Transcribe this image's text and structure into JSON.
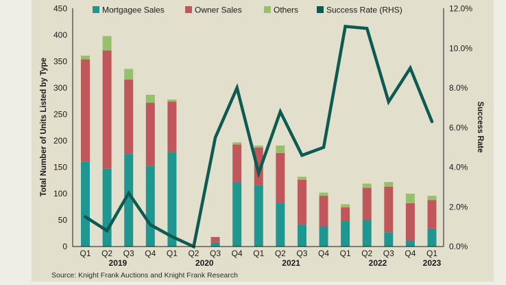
{
  "chart_data": {
    "type": "bar",
    "subtype": "stacked-bar-with-line-secondary-axis",
    "title": "",
    "categories": [
      "Q1",
      "Q2",
      "Q3",
      "Q4",
      "Q1",
      "Q2",
      "Q3",
      "Q4",
      "Q1",
      "Q2",
      "Q3",
      "Q4",
      "Q1",
      "Q2",
      "Q3",
      "Q4",
      "Q1"
    ],
    "year_groups": [
      {
        "label": "2019",
        "start": 0,
        "end": 3
      },
      {
        "label": "2020",
        "start": 4,
        "end": 7
      },
      {
        "label": "2021",
        "start": 8,
        "end": 11
      },
      {
        "label": "2022",
        "start": 12,
        "end": 15
      },
      {
        "label": "2023",
        "start": 16,
        "end": 16
      }
    ],
    "series": [
      {
        "name": "Mortgagee Sales",
        "type": "bar",
        "axis": "left",
        "color": "#1f968f",
        "values": [
          160,
          147,
          175,
          153,
          178,
          0,
          8,
          122,
          116,
          83,
          42,
          39,
          48,
          50,
          27,
          11,
          34
        ]
      },
      {
        "name": "Owner Sales",
        "type": "bar",
        "axis": "left",
        "color": "#c0575a",
        "values": [
          194,
          224,
          141,
          119,
          96,
          0,
          10,
          71,
          71,
          94,
          84,
          57,
          26,
          61,
          86,
          71,
          54
        ]
      },
      {
        "name": "Others",
        "type": "bar",
        "axis": "left",
        "color": "#97c06a",
        "values": [
          7,
          27,
          20,
          15,
          4,
          0,
          0,
          4,
          4,
          14,
          6,
          6,
          6,
          8,
          9,
          18,
          8
        ]
      },
      {
        "name": "Success Rate (RHS)",
        "type": "line",
        "axis": "right",
        "color": "#0d5a52",
        "unit": "%",
        "values": [
          1.5,
          0.8,
          2.7,
          1.1,
          0.5,
          0.0,
          5.5,
          8.0,
          3.7,
          6.8,
          4.6,
          5.0,
          11.1,
          11.0,
          7.3,
          9.0,
          6.3
        ]
      }
    ],
    "ylabel": "Total Number of Units Listed by Type",
    "ylim": [
      0,
      450
    ],
    "yticks": [
      0,
      50,
      100,
      150,
      200,
      250,
      300,
      350,
      400,
      450
    ],
    "ytick_labels": [
      "0",
      "50",
      "100",
      "150",
      "200",
      "250",
      "300",
      "350",
      "400",
      "450"
    ],
    "y2label": "Success Rate",
    "y2lim": [
      0,
      12
    ],
    "y2ticks": [
      0,
      2,
      4,
      6,
      8,
      10,
      12
    ],
    "y2tick_labels": [
      "0.0%",
      "2.0%",
      "4.0%",
      "6.0%",
      "8.0%",
      "10.0%",
      "12.0%"
    ],
    "xlabel": "",
    "grid": false,
    "legend": {
      "placement": "top",
      "entries": [
        "Mortgagee Sales",
        "Owner Sales",
        "Others",
        "Success Rate (RHS)"
      ]
    },
    "source": "Source: Knight Frank Auctions and Knight Frank Research"
  },
  "colors": {
    "panel_background": "#e2e0cc",
    "page_background": "#efeee6",
    "axis": "#1a1a1a"
  }
}
